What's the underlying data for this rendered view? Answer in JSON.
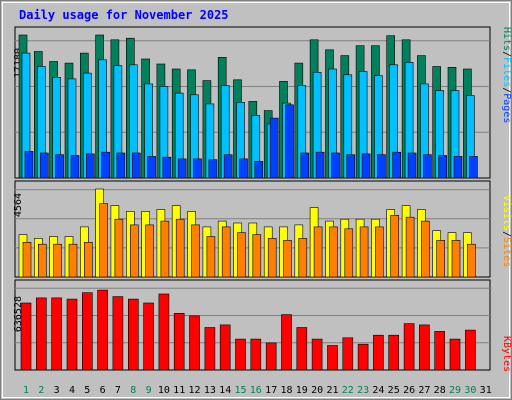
{
  "title": "Daily usage for November 2025",
  "colors": {
    "background": "#C0C0C0",
    "hits": "#00805C",
    "files": "#00C0FF",
    "pages": "#0040FF",
    "visits": "#FFFF00",
    "sites": "#FF8000",
    "kbytes": "#FF0000",
    "weekend_day": "#00805C",
    "weekday": "#000000"
  },
  "chart_data": [
    {
      "type": "bar",
      "title": "Daily usage for November 2025",
      "categories": [
        "1",
        "2",
        "3",
        "4",
        "5",
        "6",
        "7",
        "8",
        "9",
        "10",
        "11",
        "12",
        "13",
        "14",
        "15",
        "16",
        "17",
        "18",
        "19",
        "20",
        "21",
        "22",
        "23",
        "24",
        "25",
        "26",
        "27",
        "28",
        "29",
        "30",
        "31"
      ],
      "ymax_label": "17180",
      "ylim": [
        0,
        17180
      ],
      "legend": [
        "Pages",
        "/",
        "Files",
        "/",
        "Hits"
      ],
      "series": [
        {
          "name": "Hits",
          "values": [
            17180,
            15200,
            14000,
            13800,
            15000,
            17180,
            16600,
            16800,
            14300,
            13700,
            13100,
            13000,
            11700,
            14500,
            11800,
            9200,
            8100,
            11600,
            13800,
            16600,
            15400,
            14700,
            15900,
            15900,
            17100,
            16600,
            14700,
            13400,
            13300,
            13100,
            null
          ]
        },
        {
          "name": "Files",
          "values": [
            15000,
            13400,
            12100,
            11900,
            12600,
            14200,
            13500,
            13600,
            11300,
            11000,
            10200,
            10000,
            8900,
            11100,
            9100,
            7500,
            6500,
            9000,
            11100,
            12700,
            13100,
            12400,
            12800,
            12300,
            13600,
            13900,
            11300,
            10500,
            10500,
            9900,
            null
          ]
        },
        {
          "name": "Pages",
          "values": [
            3200,
            3000,
            2800,
            2700,
            2900,
            3100,
            3000,
            3000,
            2600,
            2500,
            2300,
            2300,
            2200,
            2800,
            2300,
            2000,
            7200,
            8800,
            3000,
            3100,
            3000,
            2800,
            2900,
            2800,
            3100,
            3000,
            2800,
            2700,
            2600,
            2600,
            null
          ]
        }
      ]
    },
    {
      "type": "bar",
      "categories": [
        "1",
        "2",
        "3",
        "4",
        "5",
        "6",
        "7",
        "8",
        "9",
        "10",
        "11",
        "12",
        "13",
        "14",
        "15",
        "16",
        "17",
        "18",
        "19",
        "20",
        "21",
        "22",
        "23",
        "24",
        "25",
        "26",
        "27",
        "28",
        "29",
        "30",
        "31"
      ],
      "ymax_label": "4564",
      "ylim": [
        0,
        4564
      ],
      "legend": [
        "Sites",
        "/",
        "Visits"
      ],
      "series": [
        {
          "name": "Visits",
          "values": [
            2200,
            2000,
            2100,
            2100,
            2600,
            4564,
            3700,
            3400,
            3400,
            3500,
            3700,
            3400,
            2600,
            2900,
            2800,
            2800,
            2600,
            2600,
            2700,
            3600,
            2900,
            3000,
            3000,
            3000,
            3500,
            3700,
            3500,
            2400,
            2300,
            2300,
            null
          ]
        },
        {
          "name": "Sites",
          "values": [
            1800,
            1700,
            1700,
            1700,
            1800,
            3800,
            3000,
            2700,
            2700,
            2900,
            3000,
            2700,
            2100,
            2600,
            2300,
            2200,
            2000,
            1900,
            2000,
            2600,
            2600,
            2500,
            2600,
            2600,
            3200,
            3100,
            2900,
            1900,
            1900,
            1700,
            null
          ]
        }
      ]
    },
    {
      "type": "bar",
      "categories": [
        "1",
        "2",
        "3",
        "4",
        "5",
        "6",
        "7",
        "8",
        "9",
        "10",
        "11",
        "12",
        "13",
        "14",
        "15",
        "16",
        "17",
        "18",
        "19",
        "20",
        "21",
        "22",
        "23",
        "24",
        "25",
        "26",
        "27",
        "28",
        "29",
        "30",
        "31"
      ],
      "ymax_label": "636528",
      "ylim": [
        0,
        636528
      ],
      "legend": [
        "KBytes"
      ],
      "series": [
        {
          "name": "KBytes",
          "values": [
            520000,
            560000,
            560000,
            550000,
            600000,
            620000,
            570000,
            550000,
            520000,
            590000,
            440000,
            420000,
            330000,
            350000,
            240000,
            240000,
            210000,
            430000,
            330000,
            240000,
            190000,
            250000,
            200000,
            270000,
            270000,
            360000,
            350000,
            300000,
            240000,
            310000,
            null
          ]
        }
      ]
    }
  ]
}
